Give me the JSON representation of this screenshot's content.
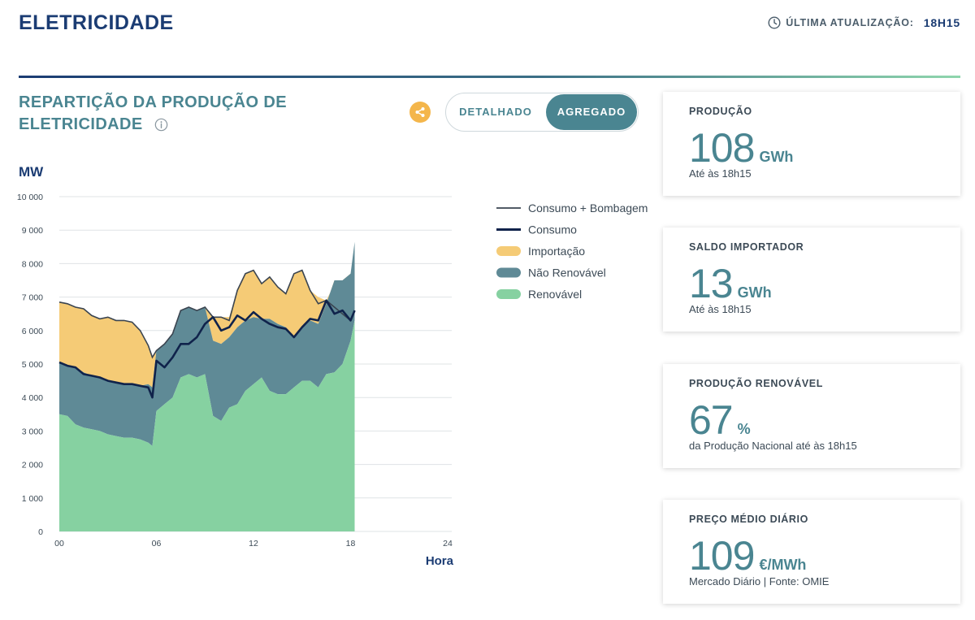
{
  "header": {
    "title": "ELETRICIDADE",
    "update_label": "ÚLTIMA ATUALIZAÇÃO:",
    "update_time": "18H15"
  },
  "section": {
    "title": "REPARTIÇÃO DA PRODUÇÃO DE ELETRICIDADE"
  },
  "toggle": {
    "option_1": "DETALHADO",
    "option_2": "AGREGADO",
    "active": "AGREGADO"
  },
  "colors": {
    "renovavel": "#86d1a1",
    "nao_renovavel": "#5f8a96",
    "importacao": "#f5cb76",
    "consumo": "#10234b",
    "consumo_bombagem": "#3a4450",
    "accent": "#4a8591",
    "share": "#f4b64b"
  },
  "chart_data": {
    "type": "area",
    "ylabel": "MW",
    "xlabel": "Hora",
    "ylim": [
      0,
      10000
    ],
    "xlim": [
      0,
      24
    ],
    "y_ticks": [
      "0",
      "1 000",
      "2 000",
      "3 000",
      "4 000",
      "5 000",
      "6 000",
      "7 000",
      "8 000",
      "9 000",
      "10 000"
    ],
    "x_ticks": [
      "00",
      "06",
      "12",
      "18",
      "24"
    ],
    "legend_position": "right",
    "legend": [
      "Consumo + Bombagem",
      "Consumo",
      "Importação",
      "Não Renovável",
      "Renovável"
    ],
    "x": [
      0,
      0.5,
      1,
      1.5,
      2,
      2.5,
      3,
      3.5,
      4,
      4.5,
      5,
      5.5,
      5.75,
      6,
      6.5,
      7,
      7.5,
      8,
      8.5,
      9,
      9.5,
      10,
      10.5,
      11,
      11.5,
      12,
      12.5,
      13,
      13.5,
      14,
      14.5,
      15,
      15.5,
      16,
      16.5,
      17,
      17.5,
      18,
      18.25
    ],
    "series": [
      {
        "name": "Renovável",
        "values": [
          3500,
          3450,
          3200,
          3100,
          3050,
          3000,
          2900,
          2850,
          2800,
          2800,
          2750,
          2650,
          2550,
          3600,
          3800,
          4000,
          4600,
          4700,
          4600,
          4700,
          3450,
          3300,
          3700,
          3800,
          4200,
          4400,
          4600,
          4200,
          4100,
          4100,
          4300,
          4500,
          4500,
          4300,
          4700,
          4750,
          5000,
          5700,
          6300
        ]
      },
      {
        "name": "Não Renovável",
        "values": [
          5050,
          4950,
          4900,
          4750,
          4650,
          4600,
          4500,
          4450,
          4400,
          4400,
          4350,
          4400,
          4300,
          5400,
          5600,
          5900,
          6600,
          6700,
          6600,
          6700,
          5700,
          5600,
          5800,
          6100,
          6300,
          6400,
          6350,
          6350,
          6200,
          6100,
          5800,
          6100,
          6300,
          6200,
          6800,
          7500,
          7500,
          7700,
          8650
        ]
      },
      {
        "name": "Importação",
        "values": [
          6850,
          6800,
          6700,
          6650,
          6450,
          6350,
          6400,
          6300,
          6300,
          6250,
          6000,
          5550,
          5200,
          5400,
          5600,
          5900,
          6600,
          6700,
          6600,
          6700,
          6400,
          6400,
          6400,
          7200,
          7700,
          7800,
          7400,
          7600,
          7300,
          7100,
          7700,
          7800,
          7200,
          7000,
          6900,
          7400,
          7400,
          7700,
          8650
        ]
      },
      {
        "name": "Consumo",
        "values": [
          5050,
          4950,
          4900,
          4700,
          4650,
          4600,
          4500,
          4450,
          4400,
          4400,
          4350,
          4300,
          4000,
          5100,
          4900,
          5200,
          5600,
          5600,
          5800,
          6200,
          6400,
          6000,
          6100,
          6450,
          6300,
          6550,
          6350,
          6200,
          6100,
          6050,
          5800,
          6100,
          6350,
          6300,
          6900,
          6500,
          6600,
          6300,
          6600
        ]
      },
      {
        "name": "Consumo + Bombagem",
        "values": [
          6850,
          6800,
          6700,
          6650,
          6450,
          6350,
          6400,
          6300,
          6300,
          6250,
          6000,
          5550,
          5200,
          5400,
          5600,
          5900,
          6600,
          6700,
          6600,
          6700,
          6400,
          6400,
          6300,
          7200,
          7700,
          7800,
          7400,
          7600,
          7300,
          7100,
          7700,
          7800,
          7200,
          6800,
          6900,
          6700,
          6500,
          6300,
          6600
        ]
      }
    ]
  },
  "cards": [
    {
      "label": "PRODUÇÃO",
      "value": "108",
      "unit": "GWh",
      "note": "Até às 18h15"
    },
    {
      "label": "SALDO IMPORTADOR",
      "value": "13",
      "unit": "GWh",
      "note": "Até às 18h15"
    },
    {
      "label": "PRODUÇÃO RENOVÁVEL",
      "value": "67",
      "unit": "%",
      "note": "da Produção Nacional até às 18h15"
    },
    {
      "label": "PREÇO MÉDIO DIÁRIO",
      "value": "109",
      "unit": "€/MWh",
      "note": "Mercado Diário | Fonte: OMIE"
    }
  ]
}
